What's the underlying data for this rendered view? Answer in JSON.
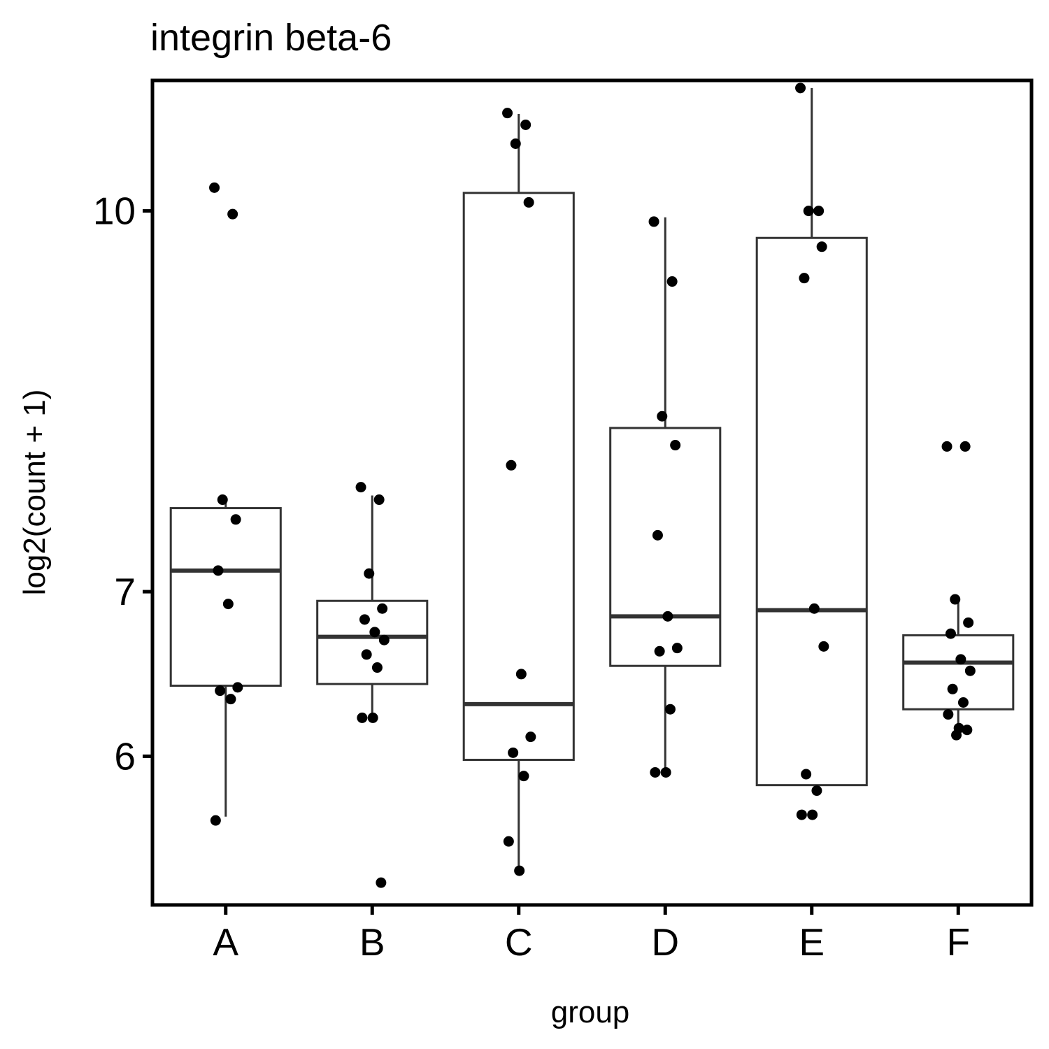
{
  "chart_data": {
    "type": "box",
    "title": "integrin beta-6",
    "xlabel": "group",
    "ylabel": "log2(count + 1)",
    "y_scale": "log10",
    "y_ticks": [
      6,
      7,
      10
    ],
    "ylim": [
      5.22,
      11.3
    ],
    "categories": [
      "A",
      "B",
      "C",
      "D",
      "E",
      "F"
    ],
    "boxes": [
      {
        "group": "A",
        "whisker_low": 5.67,
        "q1": 6.41,
        "median": 7.14,
        "q3": 7.57,
        "whisker_high": 7.61
      },
      {
        "group": "B",
        "whisker_low": 6.23,
        "q1": 6.42,
        "median": 6.71,
        "q3": 6.94,
        "whisker_high": 7.66
      },
      {
        "group": "C",
        "whisker_low": 5.4,
        "q1": 5.98,
        "median": 6.3,
        "q3": 10.17,
        "whisker_high": 10.95
      },
      {
        "group": "D",
        "whisker_low": 5.92,
        "q1": 6.53,
        "median": 6.84,
        "q3": 8.16,
        "whisker_high": 9.94
      },
      {
        "group": "E",
        "whisker_low": 5.84,
        "q1": 5.84,
        "median": 6.88,
        "q3": 9.75,
        "whisker_high": 11.22
      },
      {
        "group": "F",
        "whisker_low": 6.18,
        "q1": 6.27,
        "median": 6.55,
        "q3": 6.72,
        "whisker_high": 6.94
      }
    ],
    "points": [
      {
        "group": "A",
        "values": [
          10.22,
          9.97,
          7.63,
          7.49,
          7.14,
          6.92,
          6.4,
          6.38,
          6.33,
          5.65
        ]
      },
      {
        "group": "B",
        "values": [
          7.72,
          7.63,
          7.12,
          6.89,
          6.82,
          6.74,
          6.69,
          6.6,
          6.52,
          6.22,
          6.22,
          5.33
        ]
      },
      {
        "group": "C",
        "values": [
          10.96,
          10.84,
          10.65,
          10.08,
          7.88,
          6.48,
          6.11,
          6.02,
          5.89,
          5.54,
          5.39
        ]
      },
      {
        "group": "D",
        "values": [
          9.9,
          9.36,
          8.25,
          8.03,
          7.38,
          6.84,
          6.64,
          6.62,
          6.27,
          5.91,
          5.91
        ]
      },
      {
        "group": "E",
        "values": [
          11.22,
          10.0,
          10.0,
          9.67,
          9.39,
          6.89,
          6.65,
          5.9,
          5.81,
          5.68,
          5.68
        ]
      },
      {
        "group": "F",
        "values": [
          8.02,
          8.02,
          6.95,
          6.8,
          6.73,
          6.57,
          6.5,
          6.39,
          6.31,
          6.24,
          6.16,
          6.15,
          6.12
        ]
      }
    ],
    "grid": false,
    "legend": "none"
  }
}
